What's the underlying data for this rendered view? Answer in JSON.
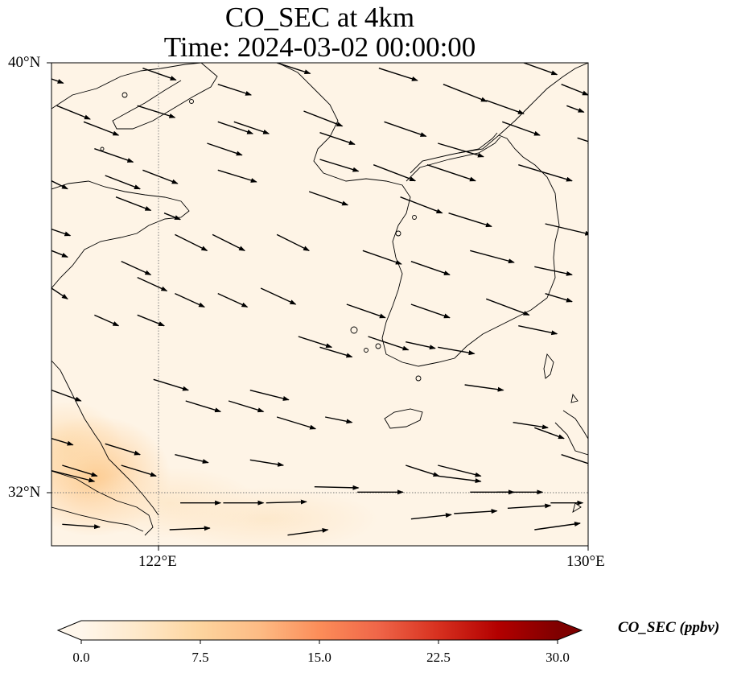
{
  "title_line1": "CO_SEC at 4km",
  "title_line2": "Time: 2024-03-02 00:00:00",
  "axes": {
    "lon_range": [
      120,
      130
    ],
    "lat_range": [
      31,
      40
    ],
    "y_ticks": [
      {
        "value": 40,
        "label": "40°N"
      },
      {
        "value": 32,
        "label": "32°N"
      }
    ],
    "x_ticks": [
      {
        "value": 122,
        "label": "122°E"
      },
      {
        "value": 130,
        "label": "130°E"
      }
    ],
    "gridlines": {
      "lon": [
        122
      ],
      "lat": [
        32
      ],
      "style": "dotted"
    }
  },
  "colorbar": {
    "label": "CO_SEC (ppbv)",
    "min": 0.0,
    "max": 30.0,
    "extend": "both",
    "colormap": "OrRd",
    "ticks": [
      "0.0",
      "7.5",
      "15.0",
      "22.5",
      "30.0"
    ],
    "colors": [
      "#fff7ec",
      "#fee8c8",
      "#fdd49e",
      "#fdbb84",
      "#fc8d59",
      "#ef6548",
      "#d7301f",
      "#b30000",
      "#7f0000"
    ]
  },
  "field": {
    "background_value_ppbv": 1.0,
    "max_value_ppbv": 8.0,
    "max_region": "near 121°E, 32°N (Yangtze River delta)",
    "hotspots": [
      {
        "lon": 120.8,
        "lat": 32.3,
        "value": 7.5
      },
      {
        "lon": 120.3,
        "lat": 32.8,
        "value": 6
      },
      {
        "lon": 122.2,
        "lat": 31.8,
        "value": 3
      },
      {
        "lon": 124,
        "lat": 31.5,
        "value": 2
      }
    ]
  },
  "wind_vectors": {
    "description": "wind arrows, mostly westerly to north-westerly",
    "arrows": [
      [
        120.0,
        39.7,
        0.22,
        -0.08
      ],
      [
        121.7,
        39.9,
        0.62,
        -0.22
      ],
      [
        123.1,
        39.6,
        0.62,
        -0.2
      ],
      [
        124.2,
        40.0,
        0.62,
        -0.2
      ],
      [
        126.1,
        39.9,
        0.72,
        -0.23
      ],
      [
        127.3,
        39.6,
        0.81,
        -0.32
      ],
      [
        128.8,
        40.0,
        0.62,
        -0.22
      ],
      [
        129.5,
        39.6,
        0.5,
        -0.2
      ],
      [
        120.1,
        39.2,
        0.62,
        -0.25
      ],
      [
        121.6,
        39.2,
        0.7,
        -0.22
      ],
      [
        120.6,
        38.9,
        0.65,
        -0.25
      ],
      [
        123.1,
        38.9,
        0.65,
        -0.22
      ],
      [
        124.7,
        39.1,
        0.72,
        -0.28
      ],
      [
        126.2,
        38.9,
        0.78,
        -0.27
      ],
      [
        128.1,
        39.3,
        0.7,
        -0.25
      ],
      [
        129.6,
        39.2,
        0.32,
        -0.12
      ],
      [
        120.8,
        38.4,
        0.72,
        -0.25
      ],
      [
        122.9,
        38.5,
        0.65,
        -0.22
      ],
      [
        123.4,
        38.9,
        0.65,
        -0.22
      ],
      [
        125.0,
        38.7,
        0.65,
        -0.22
      ],
      [
        127.2,
        38.5,
        0.85,
        -0.25
      ],
      [
        128.4,
        38.9,
        0.7,
        -0.25
      ],
      [
        129.8,
        38.6,
        0.3,
        -0.1
      ],
      [
        120.0,
        37.8,
        0.3,
        -0.15
      ],
      [
        121.7,
        38.0,
        0.65,
        -0.25
      ],
      [
        121.0,
        37.9,
        0.65,
        -0.25
      ],
      [
        123.1,
        38.0,
        0.72,
        -0.22
      ],
      [
        125.0,
        38.2,
        0.72,
        -0.22
      ],
      [
        126.0,
        38.1,
        0.78,
        -0.3
      ],
      [
        127.0,
        38.1,
        0.9,
        -0.3
      ],
      [
        128.7,
        38.1,
        1.0,
        -0.3
      ],
      [
        121.2,
        37.5,
        0.65,
        -0.25
      ],
      [
        122.1,
        37.2,
        0.3,
        -0.12
      ],
      [
        124.8,
        37.6,
        0.72,
        -0.25
      ],
      [
        126.5,
        37.5,
        0.78,
        -0.3
      ],
      [
        127.4,
        37.2,
        0.8,
        -0.25
      ],
      [
        129.2,
        37.0,
        0.85,
        -0.2
      ],
      [
        120.0,
        36.9,
        0.35,
        -0.12
      ],
      [
        122.3,
        36.8,
        0.6,
        -0.3
      ],
      [
        123.0,
        36.8,
        0.6,
        -0.3
      ],
      [
        124.2,
        36.8,
        0.6,
        -0.3
      ],
      [
        125.8,
        36.5,
        0.72,
        -0.25
      ],
      [
        126.7,
        36.3,
        0.72,
        -0.25
      ],
      [
        127.8,
        36.5,
        0.82,
        -0.22
      ],
      [
        129.0,
        36.2,
        0.7,
        -0.15
      ],
      [
        120.0,
        36.5,
        0.3,
        -0.12
      ],
      [
        121.3,
        36.3,
        0.55,
        -0.25
      ],
      [
        121.6,
        36.0,
        0.55,
        -0.25
      ],
      [
        122.3,
        35.7,
        0.55,
        -0.25
      ],
      [
        123.1,
        35.7,
        0.55,
        -0.25
      ],
      [
        123.9,
        35.8,
        0.65,
        -0.3
      ],
      [
        125.5,
        35.5,
        0.72,
        -0.25
      ],
      [
        126.7,
        35.5,
        0.72,
        -0.25
      ],
      [
        128.1,
        35.6,
        0.8,
        -0.3
      ],
      [
        129.2,
        35.7,
        0.5,
        -0.15
      ],
      [
        120.0,
        35.8,
        0.3,
        -0.2
      ],
      [
        120.8,
        35.3,
        0.45,
        -0.2
      ],
      [
        121.6,
        35.3,
        0.5,
        -0.2
      ],
      [
        124.6,
        34.9,
        0.62,
        -0.2
      ],
      [
        125.0,
        34.7,
        0.6,
        -0.18
      ],
      [
        125.9,
        34.9,
        0.75,
        -0.25
      ],
      [
        126.6,
        34.8,
        0.55,
        -0.12
      ],
      [
        127.2,
        34.7,
        0.68,
        -0.12
      ],
      [
        128.7,
        35.1,
        0.72,
        -0.15
      ],
      [
        120.0,
        33.9,
        0.55,
        -0.2
      ],
      [
        121.9,
        34.1,
        0.65,
        -0.2
      ],
      [
        122.5,
        33.7,
        0.65,
        -0.2
      ],
      [
        123.3,
        33.7,
        0.65,
        -0.2
      ],
      [
        123.7,
        33.9,
        0.72,
        -0.18
      ],
      [
        124.2,
        33.4,
        0.72,
        -0.22
      ],
      [
        125.1,
        33.4,
        0.5,
        -0.1
      ],
      [
        127.7,
        34.0,
        0.72,
        -0.1
      ],
      [
        128.6,
        33.3,
        0.65,
        -0.1
      ],
      [
        129.0,
        33.2,
        0.55,
        -0.2
      ],
      [
        120.0,
        33.0,
        0.4,
        -0.12
      ],
      [
        121.0,
        32.9,
        0.65,
        -0.2
      ],
      [
        122.3,
        32.7,
        0.62,
        -0.15
      ],
      [
        123.7,
        32.6,
        0.62,
        -0.1
      ],
      [
        126.6,
        32.5,
        0.62,
        -0.2
      ],
      [
        127.2,
        32.5,
        0.8,
        -0.2
      ],
      [
        129.5,
        32.7,
        0.6,
        -0.2
      ],
      [
        120.0,
        32.4,
        0.8,
        -0.2
      ],
      [
        120.2,
        32.5,
        0.65,
        -0.2
      ],
      [
        121.3,
        32.5,
        0.65,
        -0.2
      ],
      [
        124.9,
        32.1,
        0.82,
        -0.02
      ],
      [
        125.7,
        32.0,
        0.85,
        0.0
      ],
      [
        127.2,
        32.3,
        0.8,
        -0.1
      ],
      [
        127.8,
        32.0,
        0.82,
        0.0
      ],
      [
        128.3,
        32.0,
        0.85,
        0.0
      ],
      [
        129.3,
        31.8,
        0.6,
        0.0
      ],
      [
        122.4,
        31.8,
        0.75,
        0.0
      ],
      [
        123.2,
        31.8,
        0.75,
        0.0
      ],
      [
        124.0,
        31.8,
        0.75,
        0.02
      ],
      [
        127.5,
        31.6,
        0.8,
        0.05
      ],
      [
        128.5,
        31.7,
        0.8,
        0.05
      ],
      [
        120.2,
        31.4,
        0.7,
        -0.05
      ],
      [
        122.2,
        31.3,
        0.75,
        0.03
      ],
      [
        124.4,
        31.2,
        0.75,
        0.1
      ],
      [
        126.7,
        31.5,
        0.75,
        0.08
      ],
      [
        129.0,
        31.3,
        0.85,
        0.12
      ]
    ]
  }
}
